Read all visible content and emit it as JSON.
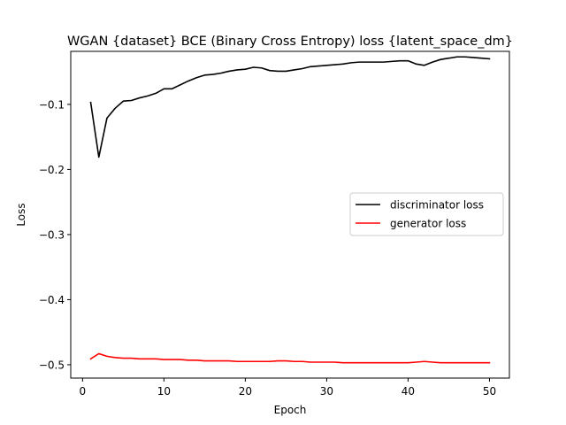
{
  "chart_data": {
    "type": "line",
    "title": "WGAN {dataset} BCE (Binary Cross Entropy) loss {latent_space_dm}",
    "xlabel": "Epoch",
    "ylabel": "Loss",
    "xlim": [
      -1.45,
      52.45
    ],
    "ylim": [
      -0.5205,
      -0.0185
    ],
    "x_ticks": [
      0,
      10,
      20,
      30,
      40,
      50
    ],
    "y_ticks": [
      -0.5,
      -0.4,
      -0.3,
      -0.2,
      -0.1
    ],
    "y_tick_labels": [
      "−0.5",
      "−0.4",
      "−0.3",
      "−0.2",
      "−0.1"
    ],
    "grid": false,
    "legend_position": "center-right",
    "x": [
      1,
      2,
      3,
      4,
      5,
      6,
      7,
      8,
      9,
      10,
      11,
      12,
      13,
      14,
      15,
      16,
      17,
      18,
      19,
      20,
      21,
      22,
      23,
      24,
      25,
      26,
      27,
      28,
      29,
      30,
      31,
      32,
      33,
      34,
      35,
      36,
      37,
      38,
      39,
      40,
      41,
      42,
      43,
      44,
      45,
      46,
      47,
      48,
      49,
      50
    ],
    "series": [
      {
        "name": "discriminator loss",
        "color": "#000000",
        "values": [
          -0.097,
          -0.181,
          -0.121,
          -0.106,
          -0.095,
          -0.094,
          -0.09,
          -0.087,
          -0.083,
          -0.076,
          -0.076,
          -0.07,
          -0.064,
          -0.059,
          -0.055,
          -0.054,
          -0.052,
          -0.049,
          -0.047,
          -0.046,
          -0.043,
          -0.044,
          -0.048,
          -0.049,
          -0.049,
          -0.047,
          -0.045,
          -0.042,
          -0.041,
          -0.04,
          -0.039,
          -0.038,
          -0.036,
          -0.035,
          -0.035,
          -0.035,
          -0.035,
          -0.034,
          -0.033,
          -0.033,
          -0.038,
          -0.04,
          -0.035,
          -0.031,
          -0.029,
          -0.027,
          -0.027,
          -0.028,
          -0.029,
          -0.03
        ]
      },
      {
        "name": "generator loss",
        "color": "#ff0000",
        "values": [
          -0.491,
          -0.483,
          -0.487,
          -0.489,
          -0.49,
          -0.49,
          -0.491,
          -0.491,
          -0.491,
          -0.492,
          -0.492,
          -0.492,
          -0.493,
          -0.493,
          -0.494,
          -0.494,
          -0.494,
          -0.494,
          -0.495,
          -0.495,
          -0.495,
          -0.495,
          -0.495,
          -0.494,
          -0.494,
          -0.495,
          -0.495,
          -0.496,
          -0.496,
          -0.496,
          -0.496,
          -0.497,
          -0.497,
          -0.497,
          -0.497,
          -0.497,
          -0.497,
          -0.497,
          -0.497,
          -0.497,
          -0.496,
          -0.495,
          -0.496,
          -0.497,
          -0.497,
          -0.497,
          -0.497,
          -0.497,
          -0.497,
          -0.497
        ]
      }
    ]
  }
}
